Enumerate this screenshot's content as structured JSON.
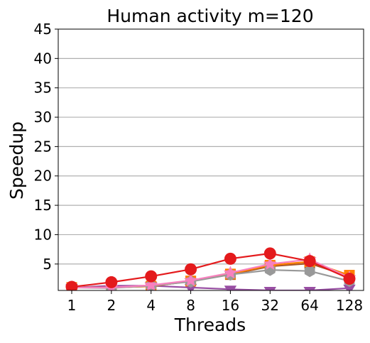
{
  "chart_data": {
    "type": "line",
    "title": "Human activity m=120",
    "xlabel": "Threads",
    "ylabel": "Speedup",
    "x_categories": [
      "1",
      "2",
      "4",
      "8",
      "16",
      "32",
      "64",
      "128"
    ],
    "ylim": [
      0.5,
      45
    ],
    "yticks": [
      5,
      10,
      15,
      20,
      25,
      30,
      35,
      40,
      45
    ],
    "grid": "horizontal",
    "legend": "none",
    "series": [
      {
        "color": "#984ea3",
        "marker": "triangle-down",
        "values": [
          1.0,
          1.3,
          1.3,
          1.0,
          0.7,
          0.5,
          0.5,
          0.9
        ]
      },
      {
        "color": "#a65628",
        "marker": "square",
        "values": [
          1.0,
          1.0,
          1.2,
          2.1,
          3.2,
          4.6,
          5.1,
          2.9
        ]
      },
      {
        "color": "#ff7f00",
        "marker": "square",
        "values": [
          1.0,
          1.0,
          1.2,
          2.1,
          3.3,
          4.8,
          5.4,
          3.1
        ]
      },
      {
        "color": "#999999",
        "marker": "hexagon",
        "values": [
          1.0,
          0.9,
          1.3,
          2.0,
          3.2,
          4.0,
          3.8,
          2.1
        ]
      },
      {
        "color": "#f781bf",
        "marker": "star",
        "values": [
          1.0,
          1.0,
          1.4,
          2.2,
          3.5,
          5.0,
          5.8,
          2.7
        ]
      },
      {
        "color": "#e41a1c",
        "marker": "circle",
        "values": [
          1.1,
          1.9,
          2.9,
          4.1,
          5.9,
          6.8,
          5.5,
          2.5
        ]
      }
    ]
  }
}
